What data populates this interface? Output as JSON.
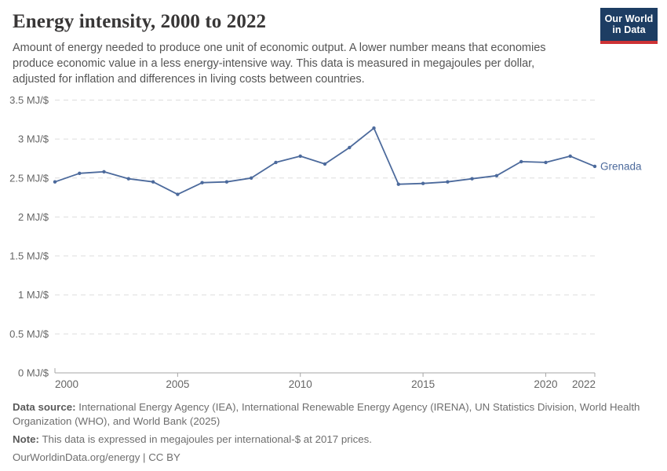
{
  "header": {
    "title": "Energy intensity, 2000 to 2022",
    "subtitle": "Amount of energy needed to produce one unit of economic output. A lower number means that economies produce economic value in a less energy-intensive way. This data is measured in megajoules per dollar, adjusted for inflation and differences in living costs between countries.",
    "logo": {
      "line1": "Our World",
      "line2": "in Data",
      "bg_color": "#1d3d63",
      "stripe_color": "#cd3235"
    }
  },
  "chart_data": {
    "type": "line",
    "title": "Energy intensity, 2000 to 2022",
    "xlabel": "",
    "ylabel": "MJ/$",
    "xlim": [
      2000,
      2022
    ],
    "ylim": [
      0,
      3.5
    ],
    "grid": "horizontal-dashed",
    "legend_position": "end-of-line-label",
    "x": [
      2000,
      2001,
      2002,
      2003,
      2004,
      2005,
      2006,
      2007,
      2008,
      2009,
      2010,
      2011,
      2012,
      2013,
      2014,
      2015,
      2016,
      2017,
      2018,
      2019,
      2020,
      2021,
      2022
    ],
    "series": [
      {
        "name": "Grenada",
        "color": "#4c6a9c",
        "values": [
          2.45,
          2.56,
          2.58,
          2.49,
          2.45,
          2.29,
          2.44,
          2.45,
          2.5,
          2.7,
          2.78,
          2.68,
          2.89,
          3.14,
          2.42,
          2.43,
          2.45,
          2.49,
          2.53,
          2.71,
          2.7,
          2.78,
          2.65
        ]
      }
    ],
    "x_ticks": [
      {
        "year": 2000,
        "label": "2000"
      },
      {
        "year": 2005,
        "label": "2005"
      },
      {
        "year": 2010,
        "label": "2010"
      },
      {
        "year": 2015,
        "label": "2015"
      },
      {
        "year": 2020,
        "label": "2020"
      },
      {
        "year": 2022,
        "label": "2022"
      }
    ],
    "y_ticks": [
      {
        "value": 0,
        "label": "0 MJ/$"
      },
      {
        "value": 0.5,
        "label": "0.5 MJ/$"
      },
      {
        "value": 1,
        "label": "1 MJ/$"
      },
      {
        "value": 1.5,
        "label": "1.5 MJ/$"
      },
      {
        "value": 2,
        "label": "2 MJ/$"
      },
      {
        "value": 2.5,
        "label": "2.5 MJ/$"
      },
      {
        "value": 3,
        "label": "3 MJ/$"
      },
      {
        "value": 3.5,
        "label": "3.5 MJ/$"
      }
    ],
    "colors": {
      "grid": "#dddddd",
      "axis": "#a5a5a5",
      "tick_text": "#666666"
    }
  },
  "footer": {
    "datasource_label": "Data source:",
    "datasource_text": " International Energy Agency (IEA), International Renewable Energy Agency (IRENA), UN Statistics Division, World Health Organization (WHO), and World Bank (2025)",
    "note_label": "Note:",
    "note_text": " This data is expressed in megajoules per international-$ at 2017 prices.",
    "license": "OurWorldinData.org/energy | CC BY"
  }
}
